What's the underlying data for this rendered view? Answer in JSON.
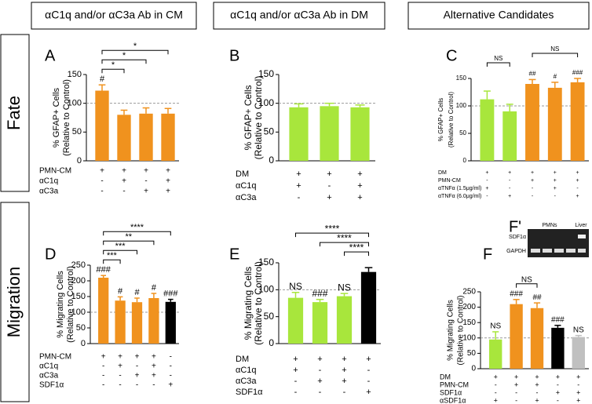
{
  "column_headers": [
    "αC1q and/or αC3a Ab in CM",
    "αC1q and/or αC3a Ab in DM",
    "Alternative Candidates"
  ],
  "row_labels": [
    "Fate",
    "Migration"
  ],
  "inset": {
    "label": "F'",
    "lanes": "PMNs",
    "control": "Liver",
    "target": "SDF1α",
    "loading": "GAPDH"
  },
  "chart_data": [
    {
      "type": "bar",
      "panel": "A",
      "ylabel": [
        "% GFAP+ Cells",
        "(Relative to Control)"
      ],
      "ylim": [
        0,
        150
      ],
      "yticks": [
        0,
        50,
        100,
        150
      ],
      "reference_line": 100,
      "values": [
        122,
        80,
        82,
        82
      ],
      "errors": [
        10,
        8,
        10,
        9
      ],
      "colors": [
        "#f0921e",
        "#f0921e",
        "#f0921e",
        "#f0921e"
      ],
      "annotations": [
        "#",
        null,
        null,
        null
      ],
      "brackets": [
        {
          "from": 0,
          "to": 1,
          "label": "*"
        },
        {
          "from": 0,
          "to": 2,
          "label": "*"
        },
        {
          "from": 0,
          "to": 3,
          "label": "*"
        }
      ],
      "conditions": [
        {
          "name": "PMN-CM",
          "marks": [
            "+",
            "+",
            "+",
            "+"
          ]
        },
        {
          "name": "αC1q",
          "marks": [
            "-",
            "+",
            "-",
            "+"
          ]
        },
        {
          "name": "αC3a",
          "marks": [
            "-",
            "-",
            "+",
            "+"
          ]
        }
      ]
    },
    {
      "type": "bar",
      "panel": "B",
      "ylabel": [
        "% GFAP+ Cells",
        "(Relative to Control)"
      ],
      "ylim": [
        0,
        150
      ],
      "yticks": [
        0,
        50,
        100,
        150
      ],
      "reference_line": 100,
      "values": [
        93,
        95,
        93
      ],
      "errors": [
        6,
        5,
        4
      ],
      "colors": [
        "#a8e63c",
        "#a8e63c",
        "#a8e63c"
      ],
      "annotations": [
        null,
        null,
        null
      ],
      "brackets": [],
      "conditions": [
        {
          "name": "DM",
          "marks": [
            "+",
            "+",
            "+"
          ]
        },
        {
          "name": "αC1q",
          "marks": [
            "+",
            "-",
            "+"
          ]
        },
        {
          "name": "αC3a",
          "marks": [
            "-",
            "+",
            "+"
          ]
        }
      ]
    },
    {
      "type": "bar",
      "panel": "C",
      "ylabel": [
        "% GFAP+ Cells",
        "(Relative to Control)"
      ],
      "ylim": [
        0,
        150
      ],
      "yticks": [
        0,
        50,
        100,
        150
      ],
      "reference_line": 100,
      "values": [
        112,
        90,
        140,
        133,
        143
      ],
      "errors": [
        15,
        13,
        8,
        10,
        7
      ],
      "colors": [
        "#a8e63c",
        "#a8e63c",
        "#f0921e",
        "#f0921e",
        "#f0921e"
      ],
      "annotations": [
        null,
        null,
        "##",
        "#",
        "###"
      ],
      "brackets": [
        {
          "from": 0,
          "to": 1,
          "label": "NS"
        },
        {
          "from": 2,
          "to": 4,
          "label": "NS"
        }
      ],
      "conditions": [
        {
          "name": "DM",
          "marks": [
            "+",
            "+",
            "+",
            "+",
            "+"
          ]
        },
        {
          "name": "PMN-CM",
          "marks": [
            "-",
            "-",
            "+",
            "+",
            "+"
          ]
        },
        {
          "name": "αTNFα (1.5μg/ml)",
          "marks": [
            "+",
            "-",
            "-",
            "+",
            "-"
          ]
        },
        {
          "name": "αTNFα (6.0μg/ml)",
          "marks": [
            "-",
            "+",
            "-",
            "-",
            "+"
          ]
        }
      ]
    },
    {
      "type": "bar",
      "panel": "D",
      "ylabel": [
        "% Migrating Cells",
        "(Relative to Control)"
      ],
      "ylim": [
        0,
        250
      ],
      "yticks": [
        0,
        50,
        100,
        150,
        200,
        250
      ],
      "reference_line": 100,
      "values": [
        210,
        137,
        132,
        145,
        133
      ],
      "errors": [
        7,
        12,
        13,
        15,
        8
      ],
      "colors": [
        "#f0921e",
        "#f0921e",
        "#f0921e",
        "#f0921e",
        "#000000"
      ],
      "annotations": [
        "###",
        "#",
        "#",
        "#",
        "###"
      ],
      "brackets": [
        {
          "from": 0,
          "to": 1,
          "label": "***"
        },
        {
          "from": 0,
          "to": 2,
          "label": "***"
        },
        {
          "from": 0,
          "to": 3,
          "label": "**"
        },
        {
          "from": 0,
          "to": 4,
          "label": "****"
        }
      ],
      "conditions": [
        {
          "name": "PMN-CM",
          "marks": [
            "+",
            "+",
            "+",
            "+",
            "-"
          ]
        },
        {
          "name": "αC1q",
          "marks": [
            "-",
            "+",
            "-",
            "+",
            "-"
          ]
        },
        {
          "name": "αC3a",
          "marks": [
            "-",
            "-",
            "+",
            "+",
            "-"
          ]
        },
        {
          "name": "SDF1α",
          "marks": [
            "-",
            "-",
            "-",
            "-",
            "+"
          ]
        }
      ]
    },
    {
      "type": "bar",
      "panel": "E",
      "ylabel": [
        "% Migrating Cells",
        "(Relative to Control)"
      ],
      "ylim": [
        0,
        150
      ],
      "yticks": [
        0,
        50,
        100,
        150
      ],
      "reference_line": 100,
      "values": [
        85,
        77,
        88,
        133
      ],
      "errors": [
        10,
        5,
        5,
        8
      ],
      "colors": [
        "#a8e63c",
        "#a8e63c",
        "#a8e63c",
        "#000000"
      ],
      "annotations": [
        "NS",
        "###",
        "NS",
        null
      ],
      "brackets": [
        {
          "from": 2,
          "to": 3,
          "label": "****"
        },
        {
          "from": 1,
          "to": 3,
          "label": "****"
        },
        {
          "from": 0,
          "to": 3,
          "label": "****"
        }
      ],
      "conditions": [
        {
          "name": "DM",
          "marks": [
            "+",
            "+",
            "+",
            "+"
          ]
        },
        {
          "name": "αC1q",
          "marks": [
            "+",
            "-",
            "+",
            "-"
          ]
        },
        {
          "name": "αC3a",
          "marks": [
            "-",
            "+",
            "+",
            "-"
          ]
        },
        {
          "name": "SDF1α",
          "marks": [
            "-",
            "-",
            "-",
            "+"
          ]
        }
      ]
    },
    {
      "type": "bar",
      "panel": "F",
      "ylabel": [
        "% Migrating Cells",
        "(Relative to Control)"
      ],
      "ylim": [
        0,
        250
      ],
      "yticks": [
        0,
        50,
        100,
        150,
        200,
        250
      ],
      "reference_line": 100,
      "values": [
        95,
        210,
        197,
        133,
        103
      ],
      "errors": [
        25,
        15,
        17,
        8,
        5
      ],
      "colors": [
        "#a8e63c",
        "#f0921e",
        "#f0921e",
        "#000000",
        "#c0c0c0"
      ],
      "annotations": [
        "NS",
        "###",
        "##",
        "###",
        "NS"
      ],
      "brackets": [
        {
          "from": 1,
          "to": 2,
          "label": "NS"
        }
      ],
      "conditions": [
        {
          "name": "DM",
          "marks": [
            "+",
            "+",
            "+",
            "+",
            "+"
          ]
        },
        {
          "name": "PMN-CM",
          "marks": [
            "-",
            "+",
            "+",
            "-",
            "-"
          ]
        },
        {
          "name": "SDF1α",
          "marks": [
            "-",
            "-",
            "-",
            "+",
            "+"
          ]
        },
        {
          "name": "αSDF1α",
          "marks": [
            "+",
            "-",
            "+",
            "-",
            "+"
          ]
        }
      ]
    }
  ]
}
